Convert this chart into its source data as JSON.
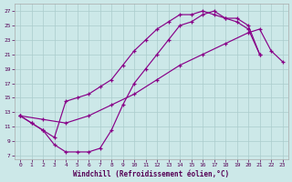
{
  "xlabel": "Windchill (Refroidissement éolien,°C)",
  "bg_color": "#cce8e8",
  "grid_color": "#aacccc",
  "line_color": "#880088",
  "xlim": [
    -0.5,
    23.5
  ],
  "ylim": [
    6.5,
    28.0
  ],
  "xticks": [
    0,
    1,
    2,
    3,
    4,
    5,
    6,
    7,
    8,
    9,
    10,
    11,
    12,
    13,
    14,
    15,
    16,
    17,
    18,
    19,
    20,
    21,
    22,
    23
  ],
  "yticks": [
    7,
    9,
    11,
    13,
    15,
    17,
    19,
    21,
    23,
    25,
    27
  ],
  "curve_top_x": [
    0,
    1,
    2,
    3,
    4,
    5,
    6,
    7,
    8,
    9,
    10,
    11,
    12,
    13,
    14,
    15,
    16,
    17,
    18,
    19,
    20,
    21
  ],
  "curve_top_y": [
    12.5,
    11.5,
    10.5,
    9.5,
    14.5,
    15.0,
    15.5,
    16.5,
    17.5,
    19.5,
    21.5,
    23.0,
    24.5,
    25.5,
    26.5,
    26.5,
    27.0,
    26.5,
    26.0,
    25.5,
    24.5,
    21.0
  ],
  "curve_bottom_x": [
    0,
    1,
    2,
    3,
    4,
    5,
    6,
    7,
    8,
    9,
    10,
    11,
    12,
    13,
    14,
    15,
    16,
    17,
    18,
    19,
    20,
    21
  ],
  "curve_bottom_y": [
    12.5,
    11.5,
    10.5,
    8.5,
    7.5,
    7.5,
    7.5,
    8.0,
    10.5,
    14.0,
    17.0,
    19.0,
    21.0,
    23.0,
    25.0,
    25.5,
    26.5,
    27.0,
    26.0,
    26.0,
    25.0,
    21.0
  ],
  "curve_diag_x": [
    0,
    2,
    4,
    6,
    8,
    10,
    12,
    14,
    16,
    18,
    20,
    21,
    22,
    23
  ],
  "curve_diag_y": [
    12.5,
    12.0,
    11.5,
    12.5,
    14.0,
    15.5,
    17.5,
    19.5,
    21.0,
    22.5,
    24.0,
    24.5,
    21.5,
    20.0
  ]
}
